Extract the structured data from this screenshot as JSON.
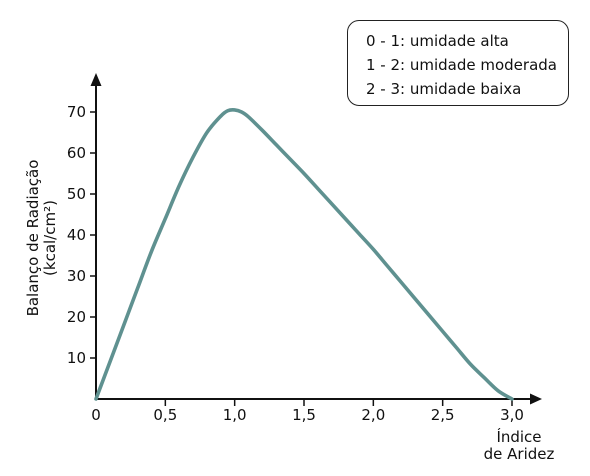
{
  "chart_data": {
    "type": "line",
    "xlabel_lines": [
      "Índice",
      "de Aridez"
    ],
    "ylabel_lines": [
      "Balanço de Radiação",
      "(kcal/cm²)"
    ],
    "xlim": [
      0,
      3.0
    ],
    "ylim": [
      0,
      70
    ],
    "x_ticks": [
      "0",
      "0,5",
      "1,0",
      "1,5",
      "2,0",
      "2,5",
      "3,0"
    ],
    "y_ticks": [
      "10",
      "20",
      "30",
      "40",
      "50",
      "60",
      "70"
    ],
    "grid": false,
    "legend_position": "top-right",
    "legend": [
      "0 - 1: umidade alta",
      "1 - 2: umidade moderada",
      "2 - 3: umidade baixa"
    ],
    "series": [
      {
        "color": "#5f9190",
        "x": [
          0,
          0.1,
          0.2,
          0.3,
          0.4,
          0.5,
          0.6,
          0.7,
          0.8,
          0.9,
          0.95,
          1.0,
          1.05,
          1.1,
          1.2,
          1.3,
          1.4,
          1.5,
          1.6,
          1.7,
          1.8,
          1.9,
          2.0,
          2.1,
          2.2,
          2.3,
          2.4,
          2.5,
          2.6,
          2.7,
          2.8,
          2.9,
          3.0
        ],
        "y": [
          0,
          9,
          18,
          27,
          36,
          44,
          52,
          59,
          65,
          69,
          70.3,
          70.5,
          70,
          68.8,
          65.5,
          62,
          58.5,
          55,
          51.3,
          47.6,
          43.9,
          40.2,
          36.5,
          32.5,
          28.5,
          24.5,
          20.5,
          16.5,
          12.5,
          8.5,
          5.2,
          2,
          0
        ]
      }
    ]
  }
}
